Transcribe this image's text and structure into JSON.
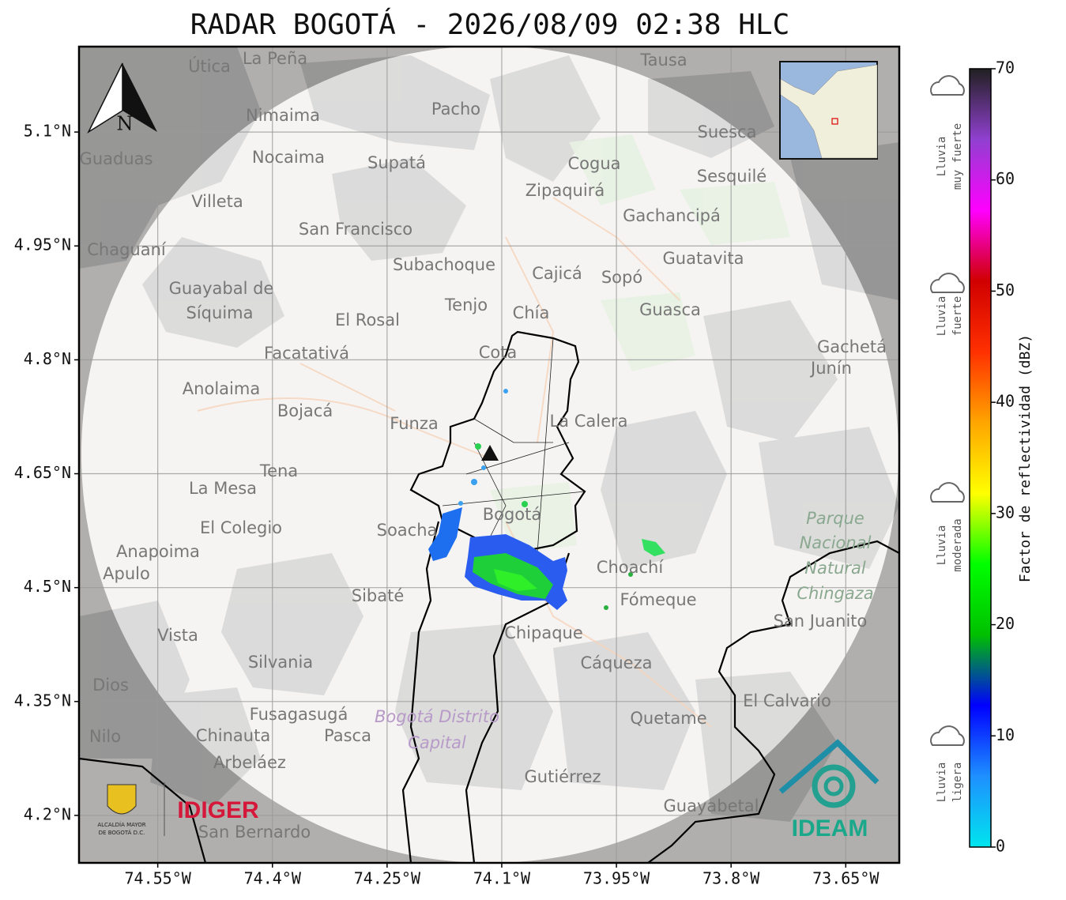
{
  "title": "RADAR BOGOTÁ - 2026/08/09 02:38 HLC",
  "map": {
    "xlim": [
      -74.653,
      -73.58
    ],
    "ylim": [
      4.1375,
      5.2125
    ],
    "xticks": [
      {
        "value": -74.55,
        "label": "74.55°W"
      },
      {
        "value": -74.4,
        "label": "74.4°W"
      },
      {
        "value": -74.25,
        "label": "74.25°W"
      },
      {
        "value": -74.1,
        "label": "74.1°W"
      },
      {
        "value": -73.95,
        "label": "73.95°W"
      },
      {
        "value": -73.8,
        "label": "73.8°W"
      },
      {
        "value": -73.65,
        "label": "73.65°W"
      }
    ],
    "yticks": [
      {
        "value": 5.1,
        "label": "5.1°N"
      },
      {
        "value": 4.95,
        "label": "4.95°N"
      },
      {
        "value": 4.8,
        "label": "4.8°N"
      },
      {
        "value": 4.65,
        "label": "4.65°N"
      },
      {
        "value": 4.5,
        "label": "4.5°N"
      },
      {
        "value": 4.35,
        "label": "4.35°N"
      },
      {
        "value": 4.2,
        "label": "4.2°N"
      }
    ],
    "grid": true,
    "north_label": "N",
    "places": [
      "La Peña",
      "Útica",
      "Tausa",
      "Pacho",
      "Nimaima",
      "Suesca",
      "Guaduas",
      "Nocaima",
      "Supatá",
      "Cogua",
      "Sesquilé",
      "Zipaquirá",
      "Villeta",
      "Gachancipá",
      "San Francisco",
      "Chaguaní",
      "Guatavita",
      "Subachoque",
      "Cajicá",
      "Sopó",
      "Guayabal de",
      "Síquima",
      "Tenjo",
      "Chía",
      "Guasca",
      "El Rosal",
      "Gachetá",
      "Junín",
      "Facatativá",
      "Cota",
      "Anolaima",
      "Bojacá",
      "Funza",
      "La Calera",
      "Tena",
      "La Mesa",
      "Bogotá",
      "Soacha",
      "El Colegio",
      "Anapoima",
      "Apulo",
      "Choachí",
      "Sibaté",
      "Fómeque",
      "Chipaque",
      "San Juanito",
      "Silvania",
      "Cáqueza",
      "El Calvario",
      "Fusagasugá",
      "Quetame",
      "Chinauta",
      "Pasca",
      "Nilo",
      "Arbeláez",
      "Gutiérrez",
      "Guayabetal",
      "San Bernardo",
      "Dios",
      "Vista"
    ],
    "park": [
      "Parque",
      "Nacional",
      "Natural",
      "Chingaza"
    ],
    "district": [
      "Bogotá Distrito",
      "Capital"
    ]
  },
  "colorbar": {
    "label": "Factor de reflectividad (dBZ)",
    "lim": [
      0,
      70
    ],
    "ticks": [
      0,
      10,
      20,
      30,
      40,
      50,
      60,
      70
    ],
    "colors": [
      "#00e5ee",
      "#1e90ff",
      "#0000ff",
      "#00c000",
      "#00ff00",
      "#ffff00",
      "#ffa500",
      "#ff3000",
      "#d00000",
      "#ff00ff",
      "#9040d0",
      "#202020"
    ]
  },
  "rain_levels": [
    [
      "Lluvia",
      "muy fuerte"
    ],
    [
      "Lluvia",
      "fuerte"
    ],
    [
      "Lluvia",
      "moderada"
    ],
    [
      "Lluvia",
      "ligera"
    ]
  ],
  "logos": {
    "alcaldia": [
      "ALCALDÍA MAYOR",
      "DE BOGOTÁ D.C."
    ],
    "idiger": "IDIGER",
    "ideam": "IDEAM"
  }
}
